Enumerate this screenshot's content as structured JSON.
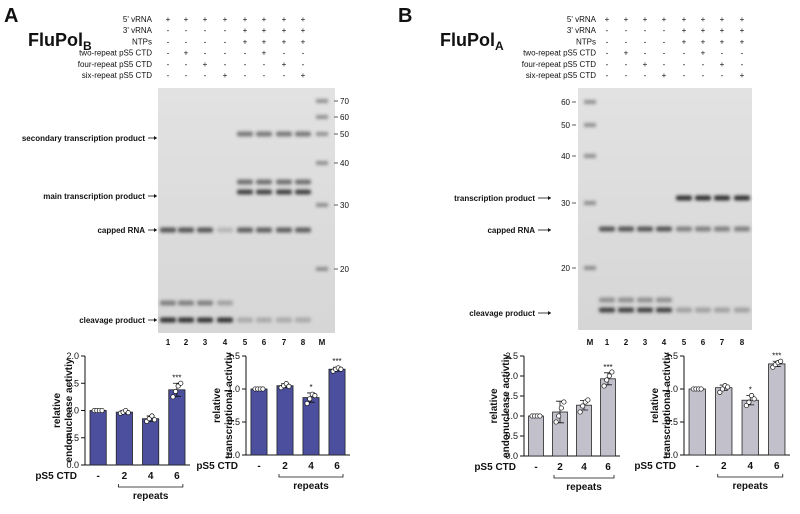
{
  "panels": [
    {
      "label": "A",
      "title": "FluPol",
      "title_subscript": "B",
      "conditions": [
        {
          "name": "5' vRNA",
          "marks": [
            "+",
            "+",
            "+",
            "+",
            "+",
            "+",
            "+",
            "+"
          ]
        },
        {
          "name": "3' vRNA",
          "marks": [
            "-",
            "-",
            "-",
            "-",
            "+",
            "+",
            "+",
            "+"
          ]
        },
        {
          "name": "NTPs",
          "marks": [
            "-",
            "-",
            "-",
            "-",
            "+",
            "+",
            "+",
            "+"
          ]
        },
        {
          "name": "two-repeat pS5 CTD",
          "marks": [
            "-",
            "+",
            "-",
            "-",
            "-",
            "+",
            "-",
            "-"
          ]
        },
        {
          "name": "four-repeat pS5 CTD",
          "marks": [
            "-",
            "-",
            "+",
            "-",
            "-",
            "-",
            "+",
            "-"
          ]
        },
        {
          "name": "six-repeat pS5 CTD",
          "marks": [
            "-",
            "-",
            "-",
            "+",
            "-",
            "-",
            "-",
            "+"
          ]
        }
      ],
      "annotations": [
        "secondary transcription product",
        "main transcription product",
        "capped RNA",
        "cleavage product"
      ],
      "marker_sizes": [
        70,
        60,
        50,
        40,
        30,
        20
      ],
      "lanes": [
        "1",
        "2",
        "3",
        "4",
        "5",
        "6",
        "7",
        "8",
        "M"
      ]
    },
    {
      "label": "B",
      "title": "FluPol",
      "title_subscript": "A",
      "conditions": [
        {
          "name": "5' vRNA",
          "marks": [
            "+",
            "+",
            "+",
            "+",
            "+",
            "+",
            "+",
            "+"
          ]
        },
        {
          "name": "3' vRNA",
          "marks": [
            "-",
            "-",
            "-",
            "-",
            "+",
            "+",
            "+",
            "+"
          ]
        },
        {
          "name": "NTPs",
          "marks": [
            "-",
            "-",
            "-",
            "-",
            "+",
            "+",
            "+",
            "+"
          ]
        },
        {
          "name": "two-repeat pS5 CTD",
          "marks": [
            "-",
            "+",
            "-",
            "-",
            "-",
            "+",
            "-",
            "-"
          ]
        },
        {
          "name": "four-repeat pS5 CTD",
          "marks": [
            "-",
            "-",
            "+",
            "-",
            "-",
            "-",
            "+",
            "-"
          ]
        },
        {
          "name": "six-repeat pS5 CTD",
          "marks": [
            "-",
            "-",
            "-",
            "+",
            "-",
            "-",
            "-",
            "+"
          ]
        }
      ],
      "annotations": [
        "transcription product",
        "capped RNA",
        "cleavage product"
      ],
      "marker_sizes": [
        60,
        50,
        40,
        30,
        20
      ],
      "lanes": [
        "M",
        "1",
        "2",
        "3",
        "4",
        "5",
        "6",
        "7",
        "8"
      ]
    }
  ],
  "chart_data": [
    {
      "type": "bar",
      "ylabel": [
        "relative",
        "endonuclease activtiy"
      ],
      "xlabel": "pS5 CTD",
      "group_label": "repeats",
      "categories": [
        "-",
        "2",
        "4",
        "6"
      ],
      "values": [
        1.0,
        0.97,
        0.85,
        1.38
      ],
      "errors": [
        0,
        0.03,
        0.05,
        0.12
      ],
      "points": [
        [
          1,
          1,
          1,
          1
        ],
        [
          0.95,
          0.97,
          1.0,
          0.96
        ],
        [
          0.8,
          0.85,
          0.9,
          0.83
        ],
        [
          1.25,
          1.35,
          1.45,
          1.5
        ]
      ],
      "significance": [
        null,
        null,
        null,
        "***"
      ],
      "color": "#4b4f9e",
      "ylim": [
        0,
        2
      ],
      "yticks": [
        {
          "value": 0,
          "label": "0.0"
        },
        {
          "value": 0.5,
          "label": "0.5"
        },
        {
          "value": 1,
          "label": "1.0"
        },
        {
          "value": 1.5,
          "label": "1.5"
        },
        {
          "value": 2,
          "label": "2.0"
        }
      ]
    },
    {
      "type": "bar",
      "ylabel": [
        "relative",
        "transcriptional activtiy"
      ],
      "xlabel": "pS5 CTD",
      "group_label": "repeats",
      "categories": [
        "-",
        "2",
        "4",
        "6"
      ],
      "values": [
        1.0,
        1.05,
        0.87,
        1.3
      ],
      "errors": [
        0,
        0.03,
        0.07,
        0.03
      ],
      "points": [
        [
          1,
          1,
          1,
          1
        ],
        [
          1.02,
          1.05,
          1.08,
          1.04
        ],
        [
          0.78,
          0.85,
          0.92,
          0.9
        ],
        [
          1.27,
          1.3,
          1.32,
          1.3
        ]
      ],
      "significance": [
        null,
        null,
        "*",
        "***"
      ],
      "color": "#4b4f9e",
      "ylim": [
        0,
        1.5
      ],
      "yticks": [
        {
          "value": 0,
          "label": "0.0"
        },
        {
          "value": 0.5,
          "label": "0.5"
        },
        {
          "value": 1,
          "label": "1.0"
        },
        {
          "value": 1.5,
          "label": "1.5"
        }
      ]
    },
    {
      "type": "bar",
      "ylabel": [
        "relative",
        "endonuclease activtiy"
      ],
      "xlabel": "pS5 CTD",
      "group_label": "repeats",
      "categories": [
        "-",
        "2",
        "4",
        "6"
      ],
      "values": [
        1.0,
        1.1,
        1.27,
        1.93
      ],
      "errors": [
        0,
        0.27,
        0.12,
        0.15
      ],
      "points": [
        [
          1,
          1,
          1,
          1
        ],
        [
          0.85,
          1.0,
          1.2,
          1.35
        ],
        [
          1.1,
          1.25,
          1.35,
          1.4
        ],
        [
          1.75,
          1.9,
          2.0,
          2.1
        ]
      ],
      "significance": [
        null,
        null,
        null,
        "***"
      ],
      "color": "#c2c1cb",
      "ylim": [
        0,
        2.5
      ],
      "yticks": [
        {
          "value": 0,
          "label": "0.0"
        },
        {
          "value": 0.5,
          "label": "0.5"
        },
        {
          "value": 1,
          "label": "1.0"
        },
        {
          "value": 1.5,
          "label": "1.5"
        },
        {
          "value": 2,
          "label": "2.0"
        },
        {
          "value": 2.5,
          "label": "2.5"
        }
      ]
    },
    {
      "type": "bar",
      "ylabel": [
        "relative",
        "transcriptional activtiy"
      ],
      "xlabel": "pS5 CTD",
      "group_label": "repeats",
      "categories": [
        "-",
        "2",
        "4",
        "6"
      ],
      "values": [
        1.0,
        1.02,
        0.83,
        1.38
      ],
      "errors": [
        0,
        0.04,
        0.07,
        0.04
      ],
      "points": [
        [
          1,
          1,
          1,
          1
        ],
        [
          0.95,
          1.0,
          1.05,
          1.03
        ],
        [
          0.75,
          0.8,
          0.9,
          0.85
        ],
        [
          1.33,
          1.37,
          1.4,
          1.42
        ]
      ],
      "significance": [
        null,
        null,
        "*",
        "***"
      ],
      "color": "#c2c1cb",
      "ylim": [
        0,
        1.5
      ],
      "yticks": [
        {
          "value": 0,
          "label": "0.0"
        },
        {
          "value": 0.5,
          "label": "0.5"
        },
        {
          "value": 1,
          "label": "1.0"
        },
        {
          "value": 1.5,
          "label": "1.5"
        }
      ]
    }
  ]
}
